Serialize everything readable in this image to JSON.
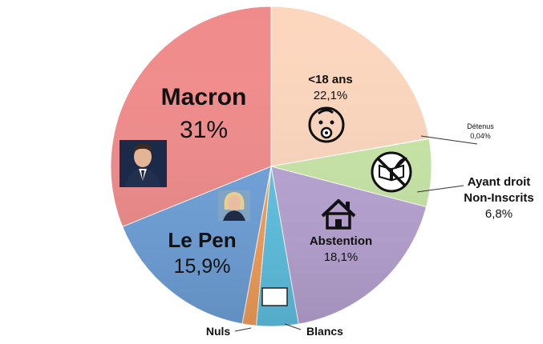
{
  "chart_data": {
    "type": "pie",
    "title": "",
    "slices": [
      {
        "label": "<18 ans",
        "value_label": "22,1%",
        "value": 22.1,
        "color": "#fcd6bd"
      },
      {
        "label": "Détenus",
        "value_label": "0,04%",
        "value": 0.04,
        "color": "#dff1c8"
      },
      {
        "label": "Ayant droit Non-Inscrits",
        "label_line1": "Ayant droit",
        "label_line2": "Non-Inscrits",
        "value_label": "6,8%",
        "value": 6.8,
        "color": "#c8e6a6"
      },
      {
        "label": "Abstention",
        "value_label": "18,1%",
        "value": 18.1,
        "color": "#b9a4d4"
      },
      {
        "label": "Blancs",
        "value": 4.2,
        "color": "#5fc3e4"
      },
      {
        "label": "Nuls",
        "value": 1.4,
        "color": "#f5a05a"
      },
      {
        "label": "Le Pen",
        "value_label": "15,9%",
        "value": 15.9,
        "color": "#6fa2db"
      },
      {
        "label": "Macron",
        "value_label": "31%",
        "value": 31,
        "color": "#f18b8b"
      }
    ],
    "start_angle_deg": 0,
    "direction": "clockwise",
    "icons": [
      "baby-face-icon",
      "no-book-quill-icon",
      "house-icon",
      "blank-ballot-icon",
      "macron-portrait",
      "le-pen-portrait"
    ]
  }
}
